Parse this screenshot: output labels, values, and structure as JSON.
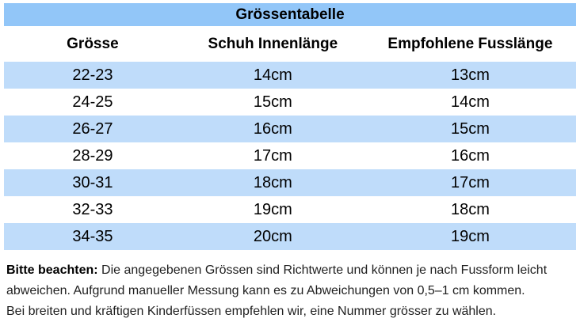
{
  "colors": {
    "page_bg": "#ffffff",
    "title_bar_bg": "#92c6f8",
    "row_alt_bg": "#bfdcfa",
    "table_text": "#000000",
    "note_text": "#1f1f1f"
  },
  "table": {
    "title": "Grössentabelle",
    "headers": [
      "Grösse",
      "Schuh Innenlänge",
      "Empfohlene Fusslänge"
    ],
    "rows": [
      [
        "22-23",
        "14cm",
        "13cm"
      ],
      [
        "24-25",
        "15cm",
        "14cm"
      ],
      [
        "26-27",
        "16cm",
        "15cm"
      ],
      [
        "28-29",
        "17cm",
        "16cm"
      ],
      [
        "30-31",
        "18cm",
        "17cm"
      ],
      [
        "32-33",
        "19cm",
        "18cm"
      ],
      [
        "34-35",
        "20cm",
        "19cm"
      ]
    ]
  },
  "note": {
    "label": "Bitte beachten:",
    "line1_rest": "Die angegebenen Grössen sind Richtwerte und können je nach Fussform leicht",
    "line2": "abweichen. Aufgrund manueller Messung kann es zu Abweichungen von 0,5–1 cm kommen.",
    "line3": "Bei breiten und kräftigen Kinderfüssen empfehlen wir, eine Nummer grösser zu wählen."
  }
}
